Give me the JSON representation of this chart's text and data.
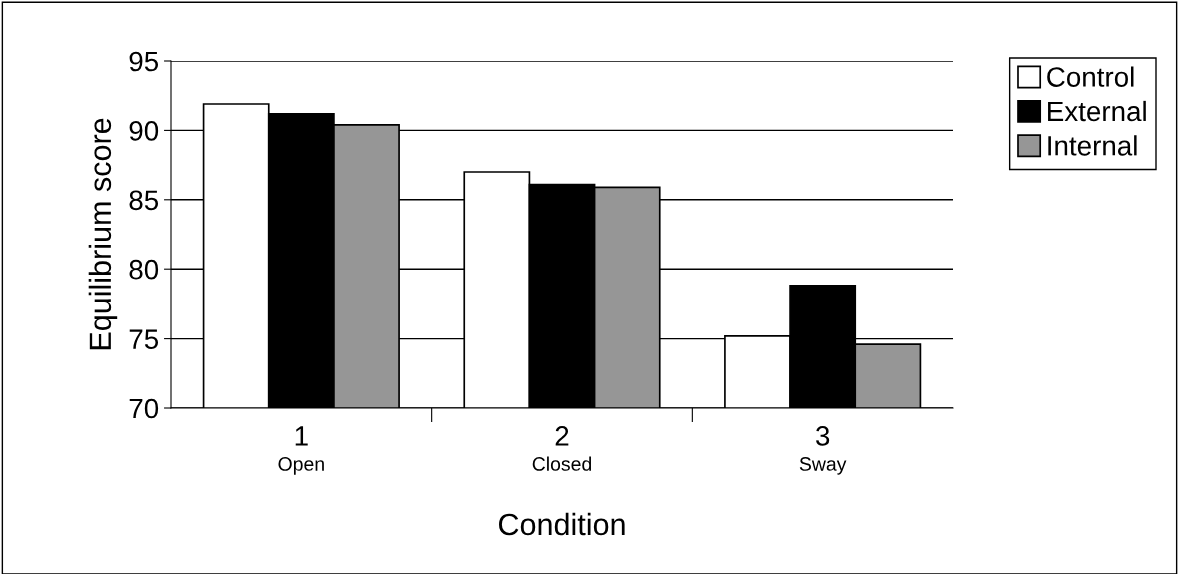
{
  "chart_data": {
    "type": "bar",
    "xlabel": "Condition",
    "ylabel": "Equilibrium score",
    "categories": [
      "1\nOpen",
      "2\nClosed",
      "3\nSway"
    ],
    "series": [
      {
        "name": "Control",
        "color": "#ffffff",
        "values": [
          91.9,
          87.0,
          75.2
        ]
      },
      {
        "name": "External",
        "color": "#000000",
        "values": [
          91.2,
          86.1,
          78.8
        ]
      },
      {
        "name": "Internal",
        "color": "#969696",
        "values": [
          90.4,
          85.9,
          74.6
        ]
      }
    ],
    "ylim": [
      70,
      95
    ],
    "yticks": [
      70,
      75,
      80,
      85,
      90,
      95
    ],
    "grid": "y",
    "legend": "top right"
  }
}
